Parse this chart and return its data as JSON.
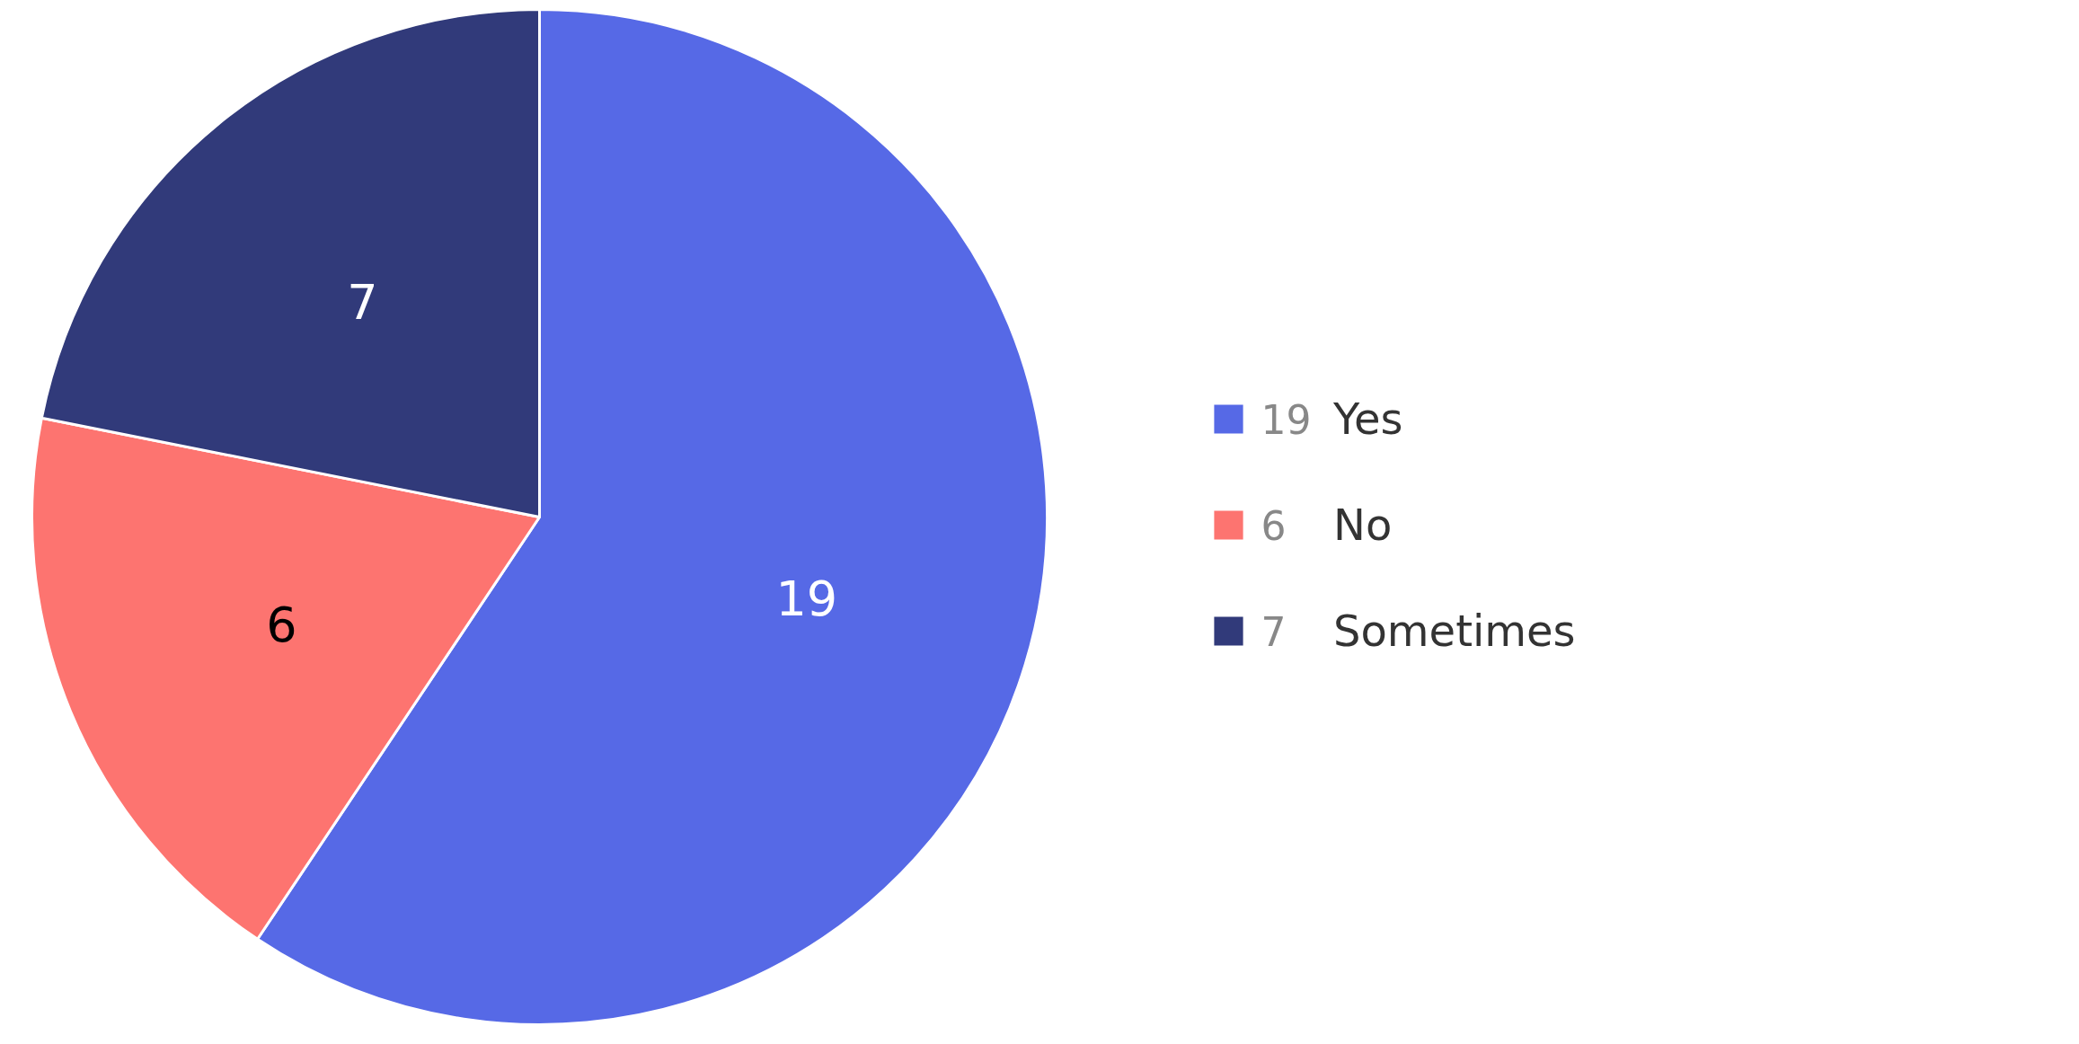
{
  "chart_data": {
    "type": "pie",
    "categories": [
      "Yes",
      "No",
      "Sometimes"
    ],
    "values": [
      19,
      6,
      7
    ],
    "annotations": [
      "19",
      "6",
      "7"
    ],
    "colors": [
      "#5669e6",
      "#fd7470",
      "#313a7a"
    ],
    "data_labels": true,
    "legend": "right"
  }
}
